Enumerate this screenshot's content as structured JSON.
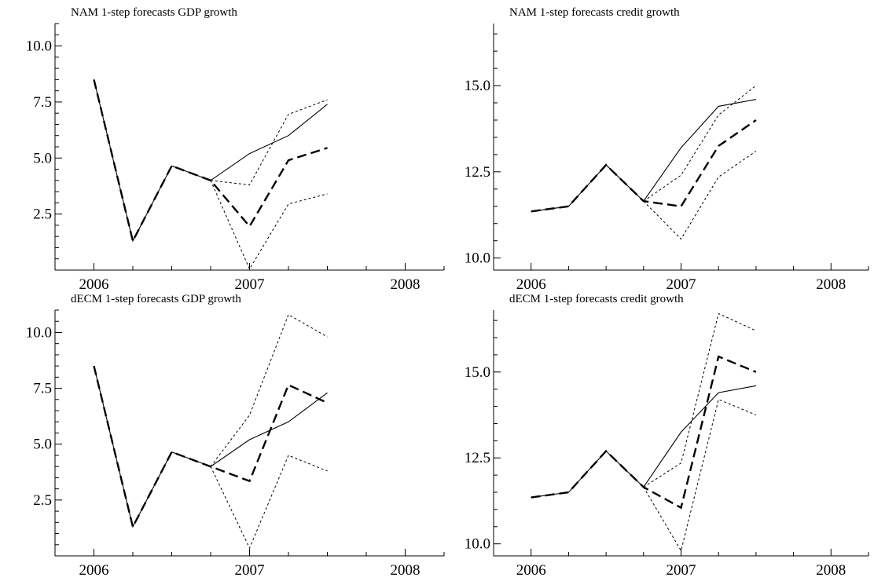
{
  "chart_data": [
    {
      "type": "line",
      "title": "NAM 1-step forecasts GDP growth",
      "xlabel": "",
      "ylabel": "",
      "x": [
        2006.0,
        2006.25,
        2006.5,
        2006.75,
        2007.0,
        2007.25,
        2007.5
      ],
      "xlim": [
        2005.75,
        2008.25
      ],
      "xticks": [
        {
          "value": 2006,
          "label": "2006"
        },
        {
          "value": 2007,
          "label": "2007"
        },
        {
          "value": 2008,
          "label": "2008"
        }
      ],
      "ylim": [
        0.0,
        11.0
      ],
      "yticks": [
        {
          "value": 2.5,
          "label": "2.5"
        },
        {
          "value": 5.0,
          "label": "5.0"
        },
        {
          "value": 7.5,
          "label": "7.5"
        },
        {
          "value": 10.0,
          "label": "10.0"
        }
      ],
      "series": [
        {
          "style": "thin-solid",
          "values": [
            8.5,
            1.3,
            4.65,
            4.0,
            5.2,
            6.0,
            7.4
          ]
        },
        {
          "style": "dashed",
          "values": [
            8.5,
            1.3,
            4.65,
            4.0,
            1.95,
            4.9,
            5.45
          ]
        },
        {
          "style": "dotted",
          "values": [
            null,
            null,
            null,
            4.0,
            3.8,
            6.95,
            7.6
          ]
        },
        {
          "style": "dotted",
          "values": [
            null,
            null,
            null,
            4.0,
            0.05,
            2.95,
            3.4
          ]
        }
      ]
    },
    {
      "type": "line",
      "title": "NAM 1-step forecasts credit growth",
      "xlabel": "",
      "ylabel": "",
      "x": [
        2006.0,
        2006.25,
        2006.5,
        2006.75,
        2007.0,
        2007.25,
        2007.5
      ],
      "xlim": [
        2005.75,
        2008.25
      ],
      "xticks": [
        {
          "value": 2006,
          "label": "2006"
        },
        {
          "value": 2007,
          "label": "2007"
        },
        {
          "value": 2008,
          "label": "2008"
        }
      ],
      "ylim": [
        9.65,
        16.8
      ],
      "yticks": [
        {
          "value": 10.0,
          "label": "10.0"
        },
        {
          "value": 12.5,
          "label": "12.5"
        },
        {
          "value": 15.0,
          "label": "15.0"
        }
      ],
      "series": [
        {
          "style": "thin-solid",
          "values": [
            11.35,
            11.5,
            12.7,
            11.65,
            13.2,
            14.4,
            14.6
          ]
        },
        {
          "style": "dashed",
          "values": [
            11.35,
            11.5,
            12.7,
            11.65,
            11.5,
            13.25,
            14.0
          ]
        },
        {
          "style": "dotted",
          "values": [
            null,
            null,
            null,
            11.65,
            12.4,
            14.15,
            15.0
          ]
        },
        {
          "style": "dotted",
          "values": [
            null,
            null,
            null,
            11.65,
            10.55,
            12.35,
            13.1
          ]
        }
      ]
    },
    {
      "type": "line",
      "title": "dECM 1-step forecasts GDP growth",
      "xlabel": "",
      "ylabel": "",
      "x": [
        2006.0,
        2006.25,
        2006.5,
        2006.75,
        2007.0,
        2007.25,
        2007.5
      ],
      "xlim": [
        2005.75,
        2008.25
      ],
      "xticks": [
        {
          "value": 2006,
          "label": "2006"
        },
        {
          "value": 2007,
          "label": "2007"
        },
        {
          "value": 2008,
          "label": "2008"
        }
      ],
      "ylim": [
        0.0,
        11.0
      ],
      "yticks": [
        {
          "value": 2.5,
          "label": "2.5"
        },
        {
          "value": 5.0,
          "label": "5.0"
        },
        {
          "value": 7.5,
          "label": "7.5"
        },
        {
          "value": 10.0,
          "label": "10.0"
        }
      ],
      "series": [
        {
          "style": "thin-solid",
          "values": [
            8.5,
            1.3,
            4.65,
            4.0,
            5.2,
            6.0,
            7.3
          ]
        },
        {
          "style": "dashed",
          "values": [
            8.5,
            1.3,
            4.65,
            4.0,
            3.35,
            7.65,
            6.85
          ]
        },
        {
          "style": "dotted",
          "values": [
            null,
            null,
            null,
            4.0,
            6.3,
            10.8,
            9.8
          ]
        },
        {
          "style": "dotted",
          "values": [
            null,
            null,
            null,
            4.0,
            0.35,
            4.5,
            3.8
          ]
        }
      ]
    },
    {
      "type": "line",
      "title": "dECM 1-step forecasts credit growth",
      "xlabel": "",
      "ylabel": "",
      "x": [
        2006.0,
        2006.25,
        2006.5,
        2006.75,
        2007.0,
        2007.25,
        2007.5
      ],
      "xlim": [
        2005.75,
        2008.25
      ],
      "xticks": [
        {
          "value": 2006,
          "label": "2006"
        },
        {
          "value": 2007,
          "label": "2007"
        },
        {
          "value": 2008,
          "label": "2008"
        }
      ],
      "ylim": [
        9.65,
        16.8
      ],
      "yticks": [
        {
          "value": 10.0,
          "label": "10.0"
        },
        {
          "value": 12.5,
          "label": "12.5"
        },
        {
          "value": 15.0,
          "label": "15.0"
        }
      ],
      "series": [
        {
          "style": "thin-solid",
          "values": [
            11.35,
            11.5,
            12.7,
            11.65,
            13.25,
            14.4,
            14.6
          ]
        },
        {
          "style": "dashed",
          "values": [
            11.35,
            11.5,
            12.7,
            11.65,
            11.05,
            15.45,
            15.0
          ]
        },
        {
          "style": "dotted",
          "values": [
            null,
            null,
            null,
            11.65,
            12.35,
            16.7,
            16.2
          ]
        },
        {
          "style": "dotted",
          "values": [
            null,
            null,
            null,
            11.65,
            9.8,
            14.2,
            13.75
          ]
        }
      ]
    }
  ]
}
